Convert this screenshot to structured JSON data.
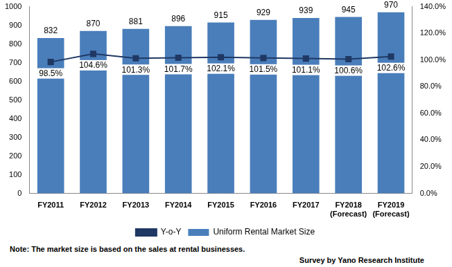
{
  "chart_data": {
    "type": "bar",
    "categories": [
      "FY2011",
      "FY2012",
      "FY2013",
      "FY2014",
      "FY2015",
      "FY2016",
      "FY2017",
      "FY2018 (Forecast)",
      "FY2019 (Forecast)"
    ],
    "series": [
      {
        "name": "Uniform Rental Market Size",
        "type": "bar",
        "color": "#4a7ebb",
        "values": [
          832,
          870,
          881,
          896,
          915,
          929,
          939,
          945,
          970
        ]
      },
      {
        "name": "Y-o-Y",
        "type": "line",
        "axis": "y2",
        "color": "#1f3864",
        "marker": "square",
        "values": [
          98.5,
          104.6,
          101.3,
          101.7,
          102.1,
          101.5,
          101.1,
          100.6,
          102.6
        ],
        "value_labels": [
          "98.5%",
          "104.6%",
          "101.3%",
          "101.7%",
          "102.1%",
          "101.5%",
          "101.1%",
          "100.6%",
          "102.6%"
        ]
      }
    ],
    "ylim": [
      0,
      1000
    ],
    "yticks": [
      0,
      100,
      200,
      300,
      400,
      500,
      600,
      700,
      800,
      900,
      1000
    ],
    "y2lim": [
      0,
      140
    ],
    "y2ticks": [
      {
        "value": 0,
        "label": "0.0%"
      },
      {
        "value": 20,
        "label": "20.0%"
      },
      {
        "value": 40,
        "label": "40.0%"
      },
      {
        "value": 60,
        "label": "60.0%"
      },
      {
        "value": 80,
        "label": "80.0%"
      },
      {
        "value": 100,
        "label": "100.0%"
      },
      {
        "value": 120,
        "label": "120.0%"
      },
      {
        "value": 140,
        "label": "140.0%"
      }
    ],
    "grid": false,
    "legend": "bottom",
    "data_labels": true,
    "note": "Note: The market size is based on the sales at rental businesses.",
    "source": "Survey by Yano Research Institute"
  }
}
